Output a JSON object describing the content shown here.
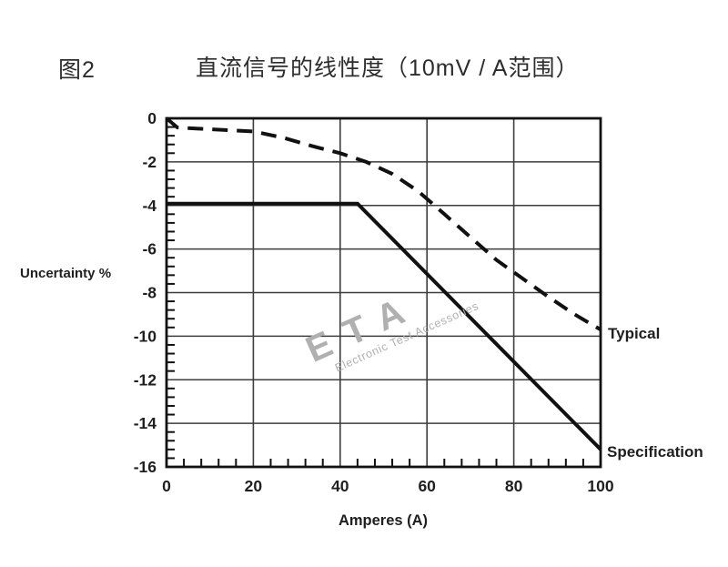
{
  "page": {
    "background": "#ffffff"
  },
  "header": {
    "figure_label": "图2",
    "title": "直流信号的线性度（10mV / A范围）"
  },
  "watermark": {
    "brand": "ETA",
    "tagline": "Electronic Test Accessories",
    "color": "#b0b0b0"
  },
  "colors": {
    "line": "#111111",
    "grid": "#3d3d3d",
    "border": "#111111",
    "text": "#1f1f1f"
  },
  "chart_data": {
    "type": "line",
    "title": "直流信号的线性度（10mV / A范围）",
    "xlabel": "Amperes (A)",
    "ylabel": "Uncertainty %",
    "xlim": [
      0,
      100
    ],
    "ylim": [
      -16,
      0
    ],
    "x_major_ticks": [
      0,
      20,
      40,
      60,
      80,
      100
    ],
    "x_minor_step": 4,
    "y_major_ticks": [
      0,
      -2,
      -4,
      -6,
      -8,
      -10,
      -12,
      -14,
      -16
    ],
    "y_minor_step": 0.4,
    "grid": true,
    "legend_position": "right-of-line-ends",
    "series": [
      {
        "name": "Typical",
        "style": "dashed",
        "points": [
          [
            0,
            0
          ],
          [
            2.5,
            -0.42
          ],
          [
            10,
            -0.5
          ],
          [
            20,
            -0.6
          ],
          [
            27,
            -0.9
          ],
          [
            34,
            -1.3
          ],
          [
            40,
            -1.6
          ],
          [
            46,
            -2.0
          ],
          [
            52,
            -2.55
          ],
          [
            58,
            -3.35
          ],
          [
            64,
            -4.4
          ],
          [
            70,
            -5.45
          ],
          [
            76,
            -6.5
          ],
          [
            82,
            -7.35
          ],
          [
            88,
            -8.2
          ],
          [
            94,
            -9.0
          ],
          [
            100,
            -9.7
          ]
        ]
      },
      {
        "name": "Specification",
        "style": "solid",
        "points": [
          [
            0,
            -3.92
          ],
          [
            44,
            -3.92
          ],
          [
            100,
            -15.2
          ]
        ]
      }
    ]
  }
}
